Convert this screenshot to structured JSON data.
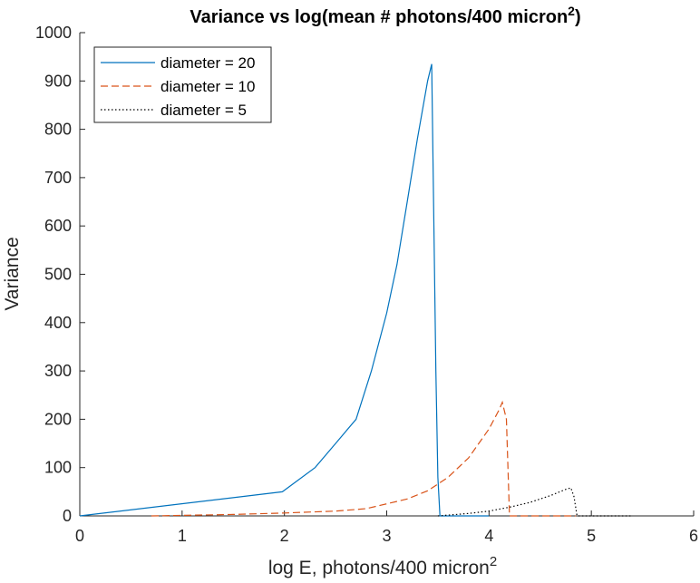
{
  "chart_data": {
    "type": "line",
    "title": "Variance vs log(mean # photons/400 micron",
    "title_superscript": "2",
    "title_suffix": ")",
    "xlabel": "log E, photons/400 micron",
    "xlabel_superscript": "2",
    "ylabel": "Variance",
    "xlim": [
      0,
      6
    ],
    "ylim": [
      0,
      1000
    ],
    "xticks": [
      0,
      1,
      2,
      3,
      4,
      5,
      6
    ],
    "yticks": [
      0,
      100,
      200,
      300,
      400,
      500,
      600,
      700,
      800,
      900,
      1000
    ],
    "grid": false,
    "legend_position": "top-left",
    "series": [
      {
        "name": "diameter = 20",
        "color": "#0072BD",
        "style": "solid",
        "x": [
          0,
          1.98,
          2.3,
          2.5,
          2.7,
          2.85,
          3.0,
          3.1,
          3.2,
          3.3,
          3.4,
          3.44,
          3.48,
          3.5,
          3.52,
          3.7,
          4.0
        ],
        "y": [
          0,
          50,
          100,
          150,
          200,
          300,
          420,
          520,
          650,
          780,
          900,
          935,
          300,
          80,
          0,
          0,
          0
        ]
      },
      {
        "name": "diameter = 10",
        "color": "#D95319",
        "style": "dashed",
        "x": [
          0.7,
          1.5,
          2.0,
          2.5,
          2.8,
          3.0,
          3.2,
          3.4,
          3.6,
          3.8,
          4.0,
          4.1,
          4.13,
          4.17,
          4.2,
          4.5,
          4.85
        ],
        "y": [
          0,
          3,
          6,
          10,
          15,
          25,
          35,
          52,
          80,
          120,
          180,
          220,
          235,
          200,
          0,
          0,
          0
        ]
      },
      {
        "name": "diameter = 5",
        "color": "#000000",
        "style": "dotted",
        "x": [
          3.5,
          3.8,
          4.0,
          4.2,
          4.4,
          4.6,
          4.75,
          4.8,
          4.83,
          4.86,
          5.0,
          5.4
        ],
        "y": [
          0,
          5,
          10,
          18,
          28,
          42,
          55,
          58,
          40,
          0,
          0,
          0
        ]
      }
    ]
  }
}
